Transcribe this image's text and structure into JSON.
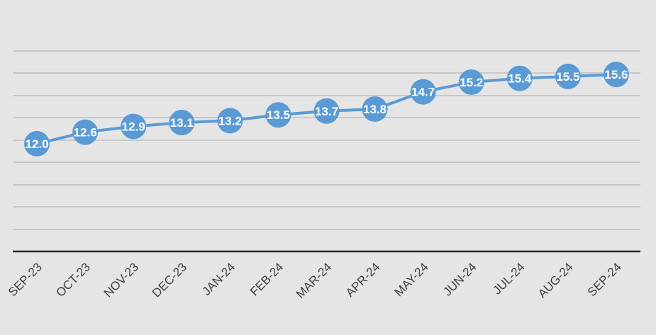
{
  "chart_data": {
    "type": "line",
    "categories": [
      "SEP-23",
      "OCT-23",
      "NOV-23",
      "DEC-23",
      "JAN-24",
      "FEB-24",
      "MAR-24",
      "APR-24",
      "MAY-24",
      "JUN-24",
      "JUL-24",
      "AUG-24",
      "SEP-24"
    ],
    "series": [
      {
        "values": [
          12.0,
          12.6,
          12.9,
          13.1,
          13.2,
          13.5,
          13.7,
          13.8,
          14.7,
          15.2,
          15.4,
          15.5,
          15.6
        ],
        "labels": [
          "12.0",
          "12.6",
          "12.9",
          "13.1",
          "13.2",
          "13.5",
          "13.7",
          "13.8",
          "14.7",
          "15.2",
          "15.4",
          "15.5",
          "15.6"
        ],
        "color": "#5b9bd5"
      }
    ],
    "ylim": [
      6.4,
      18.0
    ],
    "grid": true,
    "data_labels": true,
    "legend": "none",
    "colors": {
      "background": "#e5e5e5",
      "gridline": "#bfbfbf",
      "axis": "#262626",
      "label_text": "#ffffff",
      "tick_text": "#404040"
    }
  }
}
